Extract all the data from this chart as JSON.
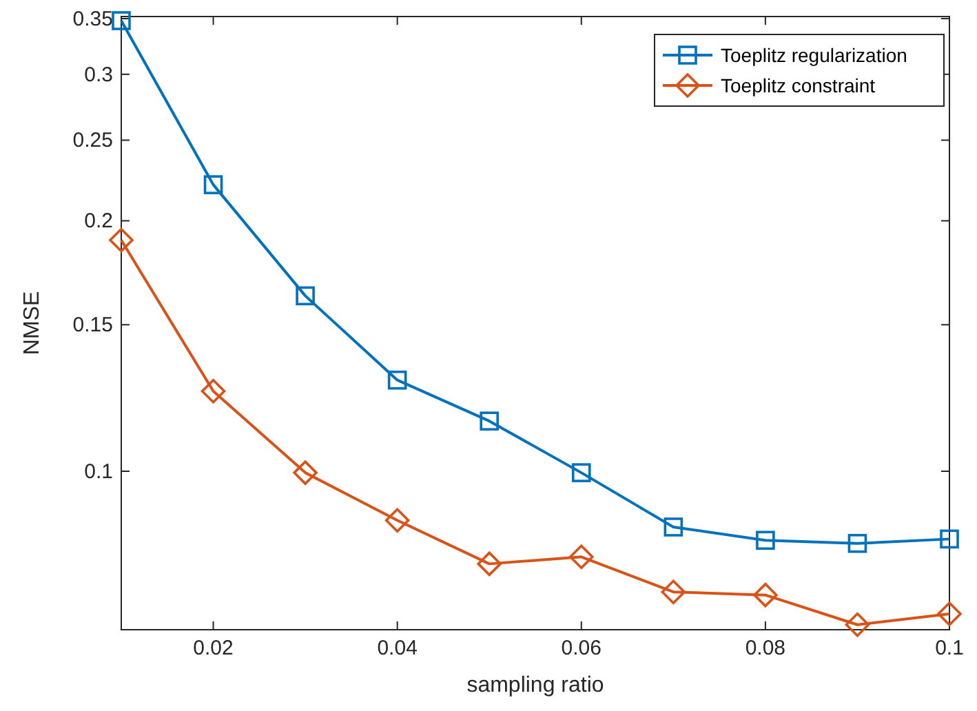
{
  "chart_data": {
    "type": "line",
    "xlabel": "sampling ratio",
    "ylabel": "NMSE",
    "log": "y",
    "x": [
      0.01,
      0.02,
      0.03,
      0.04,
      0.05,
      0.06,
      0.07,
      0.08,
      0.09,
      0.1
    ],
    "xlim": [
      0.01,
      0.1
    ],
    "xticks": [
      0.02,
      0.04,
      0.06,
      0.08,
      0.1
    ],
    "ylim": [
      0.0645,
      0.352
    ],
    "yticks": [
      0.1,
      0.15,
      0.2,
      0.25,
      0.3,
      0.35
    ],
    "grid": false,
    "legend": "top right",
    "series": [
      {
        "name": "Toeplitz regularization",
        "color": "#0072bd",
        "marker": "square",
        "values": [
          0.348,
          0.221,
          0.1625,
          0.1287,
          0.1149,
          0.0996,
          0.0857,
          0.0826,
          0.0819,
          0.0829
        ]
      },
      {
        "name": "Toeplitz constraint",
        "color": "#d95319",
        "marker": "diamond",
        "values": [
          0.1896,
          0.1248,
          0.0996,
          0.0873,
          0.0774,
          0.0789,
          0.0716,
          0.071,
          0.0654,
          0.0674
        ]
      }
    ]
  }
}
